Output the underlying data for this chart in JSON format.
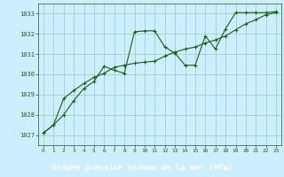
{
  "title": "Graphe pression niveau de la mer (hPa)",
  "background_color": "#cceeff",
  "label_bg_color": "#2d6a2d",
  "label_text_color": "#ffffff",
  "grid_color": "#99ccbb",
  "line_color": "#1a5c1a",
  "xlim": [
    -0.5,
    23.5
  ],
  "ylim": [
    1026.5,
    1033.5
  ],
  "yticks": [
    1027,
    1028,
    1029,
    1030,
    1031,
    1032,
    1033
  ],
  "xticks": [
    0,
    1,
    2,
    3,
    4,
    5,
    6,
    7,
    8,
    9,
    10,
    11,
    12,
    13,
    14,
    15,
    16,
    17,
    18,
    19,
    20,
    21,
    22,
    23
  ],
  "series1_x": [
    0,
    1,
    2,
    3,
    4,
    5,
    6,
    7,
    8,
    9,
    10,
    11,
    12,
    13,
    14,
    15,
    16,
    17,
    18,
    19,
    20,
    21,
    22,
    23
  ],
  "series1_y": [
    1027.1,
    1027.5,
    1028.0,
    1028.7,
    1029.3,
    1029.65,
    1030.4,
    1030.2,
    1030.05,
    1032.1,
    1032.15,
    1032.15,
    1031.35,
    1031.05,
    1030.45,
    1030.45,
    1031.9,
    1031.25,
    1032.25,
    1033.05,
    1033.05,
    1033.05,
    1033.05,
    1033.1
  ],
  "series2_x": [
    0,
    1,
    2,
    3,
    4,
    5,
    6,
    7,
    8,
    9,
    10,
    11,
    12,
    13,
    14,
    15,
    16,
    17,
    18,
    19,
    20,
    21,
    22,
    23
  ],
  "series2_y": [
    1027.1,
    1027.5,
    1028.8,
    1029.2,
    1029.55,
    1029.85,
    1030.05,
    1030.35,
    1030.45,
    1030.55,
    1030.6,
    1030.65,
    1030.9,
    1031.1,
    1031.25,
    1031.35,
    1031.55,
    1031.7,
    1031.9,
    1032.2,
    1032.5,
    1032.7,
    1032.95,
    1033.05
  ]
}
